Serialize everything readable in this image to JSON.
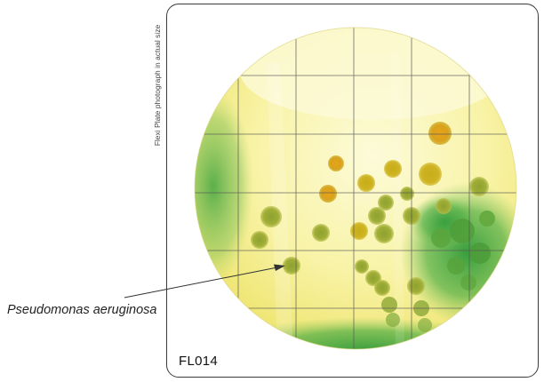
{
  "figure": {
    "side_caption": "Flexi Plate photograph in actual size",
    "pointer_label": "Pseudomonas aeruginosa",
    "plate_code": "FL014",
    "colors": {
      "agar_light": "#fdfbd6",
      "agar_yellow": "#f3ed7e",
      "green_growth": "#3f9a3c",
      "grid_line": "#555555"
    }
  }
}
